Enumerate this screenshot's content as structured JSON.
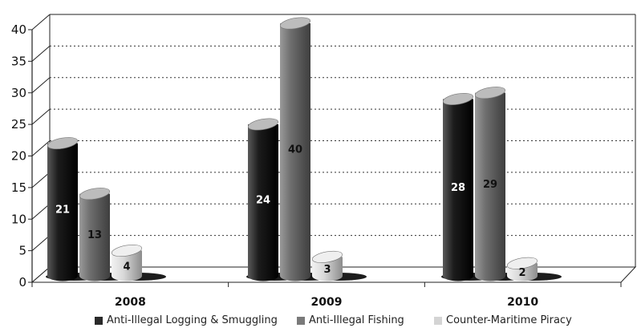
{
  "chart_data": {
    "type": "bar",
    "categories": [
      "2008",
      "2009",
      "2010"
    ],
    "series": [
      {
        "name": "Anti-Illegal Logging & Smuggling",
        "values": [
          21,
          24,
          28
        ],
        "color": "#2a2a2a"
      },
      {
        "name": "Anti-Illegal Fishing",
        "values": [
          13,
          40,
          29
        ],
        "color": "#7a7a7a"
      },
      {
        "name": "Counter-Maritime Piracy",
        "values": [
          4,
          3,
          2
        ],
        "color": "#d4d4d4"
      }
    ],
    "yticks": [
      "0",
      "5",
      "10",
      "15",
      "20",
      "25",
      "30",
      "35",
      "40"
    ],
    "ylim": [
      0,
      40
    ],
    "grid": "dotted horizontal",
    "legend_position": "bottom"
  }
}
